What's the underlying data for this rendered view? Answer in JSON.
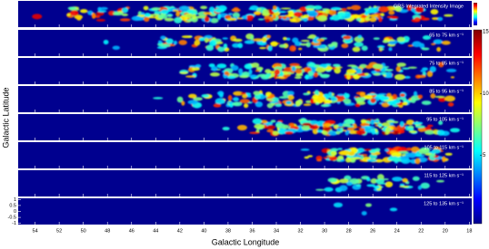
{
  "chart_data": {
    "type": "channel-maps",
    "xlabel": "Galactic Longitude",
    "ylabel": "Galactic Latitude",
    "xlim": [
      55.4,
      17.8
    ],
    "xticks": [
      54,
      52,
      50,
      48,
      46,
      44,
      42,
      40,
      38,
      36,
      34,
      32,
      30,
      28,
      26,
      24,
      22,
      20,
      18
    ],
    "ylim": [
      -1.1,
      1.1
    ],
    "yticks": [
      1,
      0.5,
      0,
      -0.5,
      -1
    ],
    "top_panel": {
      "label": "GRS Integrated Intensity Image"
    },
    "panels": [
      {
        "label": "65 to 75 km s⁻¹"
      },
      {
        "label": "75 to 85 km s⁻¹"
      },
      {
        "label": "85 to 95 km s⁻¹"
      },
      {
        "label": "95 to 105 km s⁻¹"
      },
      {
        "label": "105 to 115 km s⁻¹"
      },
      {
        "label": "115 to 125 km s⁻¹"
      },
      {
        "label": "125 to 135 km s⁻¹"
      }
    ],
    "colorbar": {
      "lim": [
        0,
        15
      ],
      "ticks": [
        5,
        10,
        15
      ]
    }
  }
}
